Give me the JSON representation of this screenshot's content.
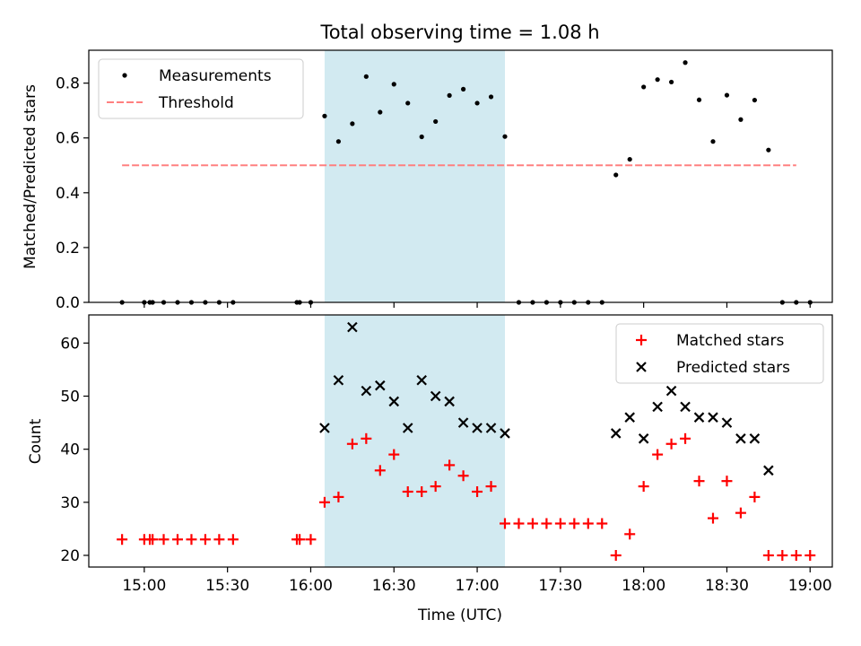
{
  "title": "Total observing time = 1.08 h",
  "colors": {
    "highlight": "#add8e6",
    "threshold": "#ff8080",
    "matched": "#ff0000",
    "predicted": "#000000",
    "measurement": "#000000"
  },
  "chart_data": [
    {
      "type": "scatter",
      "panel": "top",
      "ylabel": "Matched/Predicted stars",
      "ylim": [
        0,
        0.92
      ],
      "yticks": [
        "0.0",
        "0.2",
        "0.4",
        "0.6",
        "0.8"
      ],
      "xlim": [
        "14:40",
        "19:08"
      ],
      "highlight_span": [
        "16:05",
        "17:10"
      ],
      "legend": {
        "position": "top-left",
        "entries": [
          "Measurements",
          "Threshold"
        ]
      },
      "threshold": {
        "name": "Threshold",
        "value": 0.5,
        "x": [
          "14:52",
          "18:55"
        ],
        "style": "dashed"
      },
      "series": [
        {
          "name": "Measurements",
          "points": [
            [
              "14:52",
              0.0
            ],
            [
              "15:00",
              0.0
            ],
            [
              "15:02",
              0.0
            ],
            [
              "15:03",
              0.0
            ],
            [
              "15:07",
              0.0
            ],
            [
              "15:12",
              0.0
            ],
            [
              "15:17",
              0.0
            ],
            [
              "15:22",
              0.0
            ],
            [
              "15:27",
              0.0
            ],
            [
              "15:32",
              0.0
            ],
            [
              "15:55",
              0.0
            ],
            [
              "15:56",
              0.0
            ],
            [
              "16:00",
              0.0
            ],
            [
              "16:05",
              0.68
            ],
            [
              "16:10",
              0.587
            ],
            [
              "16:15",
              0.652
            ],
            [
              "16:20",
              0.824
            ],
            [
              "16:25",
              0.694
            ],
            [
              "16:30",
              0.796
            ],
            [
              "16:35",
              0.727
            ],
            [
              "16:40",
              0.604
            ],
            [
              "16:45",
              0.66
            ],
            [
              "16:50",
              0.755
            ],
            [
              "16:55",
              0.778
            ],
            [
              "17:00",
              0.727
            ],
            [
              "17:05",
              0.75
            ],
            [
              "17:10",
              0.605
            ],
            [
              "17:15",
              0.0
            ],
            [
              "17:20",
              0.0
            ],
            [
              "17:25",
              0.0
            ],
            [
              "17:30",
              0.0
            ],
            [
              "17:35",
              0.0
            ],
            [
              "17:40",
              0.0
            ],
            [
              "17:45",
              0.0
            ],
            [
              "17:50",
              0.465
            ],
            [
              "17:55",
              0.522
            ],
            [
              "18:00",
              0.786
            ],
            [
              "18:05",
              0.813
            ],
            [
              "18:10",
              0.804
            ],
            [
              "18:15",
              0.875
            ],
            [
              "18:20",
              0.739
            ],
            [
              "18:25",
              0.587
            ],
            [
              "18:30",
              0.756
            ],
            [
              "18:35",
              0.667
            ],
            [
              "18:40",
              0.738
            ],
            [
              "18:45",
              0.556
            ],
            [
              "18:50",
              0.0
            ],
            [
              "18:55",
              0.0
            ],
            [
              "19:00",
              0.0
            ]
          ]
        }
      ]
    },
    {
      "type": "scatter",
      "panel": "bottom",
      "xlabel": "Time (UTC)",
      "ylabel": "Count",
      "ylim": [
        17.8,
        65.3
      ],
      "yticks": [
        "20",
        "30",
        "40",
        "50",
        "60"
      ],
      "xlim": [
        "14:40",
        "19:08"
      ],
      "xticks": [
        "15:00",
        "15:30",
        "16:00",
        "16:30",
        "17:00",
        "17:30",
        "18:00",
        "18:30",
        "19:00"
      ],
      "highlight_span": [
        "16:05",
        "17:10"
      ],
      "legend": {
        "position": "top-right",
        "entries": [
          "Matched stars",
          "Predicted stars"
        ]
      },
      "series": [
        {
          "name": "Matched stars",
          "marker": "+",
          "points": [
            [
              "14:52",
              23
            ],
            [
              "15:00",
              23
            ],
            [
              "15:02",
              23
            ],
            [
              "15:03",
              23
            ],
            [
              "15:07",
              23
            ],
            [
              "15:12",
              23
            ],
            [
              "15:17",
              23
            ],
            [
              "15:22",
              23
            ],
            [
              "15:27",
              23
            ],
            [
              "15:32",
              23
            ],
            [
              "15:55",
              23
            ],
            [
              "15:56",
              23
            ],
            [
              "16:00",
              23
            ],
            [
              "16:05",
              30
            ],
            [
              "16:10",
              31
            ],
            [
              "16:15",
              41
            ],
            [
              "16:20",
              42
            ],
            [
              "16:25",
              36
            ],
            [
              "16:30",
              39
            ],
            [
              "16:35",
              32
            ],
            [
              "16:40",
              32
            ],
            [
              "16:45",
              33
            ],
            [
              "16:50",
              37
            ],
            [
              "16:55",
              35
            ],
            [
              "17:00",
              32
            ],
            [
              "17:05",
              33
            ],
            [
              "17:10",
              26
            ],
            [
              "17:15",
              26
            ],
            [
              "17:20",
              26
            ],
            [
              "17:25",
              26
            ],
            [
              "17:30",
              26
            ],
            [
              "17:35",
              26
            ],
            [
              "17:40",
              26
            ],
            [
              "17:45",
              26
            ],
            [
              "17:50",
              20
            ],
            [
              "17:55",
              24
            ],
            [
              "18:00",
              33
            ],
            [
              "18:05",
              39
            ],
            [
              "18:10",
              41
            ],
            [
              "18:15",
              42
            ],
            [
              "18:20",
              34
            ],
            [
              "18:25",
              27
            ],
            [
              "18:30",
              34
            ],
            [
              "18:35",
              28
            ],
            [
              "18:40",
              31
            ],
            [
              "18:45",
              20
            ],
            [
              "18:50",
              20
            ],
            [
              "18:55",
              20
            ],
            [
              "19:00",
              20
            ]
          ]
        },
        {
          "name": "Predicted stars",
          "marker": "x",
          "points": [
            [
              "16:05",
              44
            ],
            [
              "16:10",
              53
            ],
            [
              "16:15",
              63
            ],
            [
              "16:20",
              51
            ],
            [
              "16:25",
              52
            ],
            [
              "16:30",
              49
            ],
            [
              "16:35",
              44
            ],
            [
              "16:40",
              53
            ],
            [
              "16:45",
              50
            ],
            [
              "16:50",
              49
            ],
            [
              "16:55",
              45
            ],
            [
              "17:00",
              44
            ],
            [
              "17:05",
              44
            ],
            [
              "17:10",
              43
            ],
            [
              "17:50",
              43
            ],
            [
              "17:55",
              46
            ],
            [
              "18:00",
              42
            ],
            [
              "18:05",
              48
            ],
            [
              "18:10",
              51
            ],
            [
              "18:15",
              48
            ],
            [
              "18:20",
              46
            ],
            [
              "18:25",
              46
            ],
            [
              "18:30",
              45
            ],
            [
              "18:35",
              42
            ],
            [
              "18:40",
              42
            ],
            [
              "18:45",
              36
            ]
          ]
        }
      ]
    }
  ]
}
